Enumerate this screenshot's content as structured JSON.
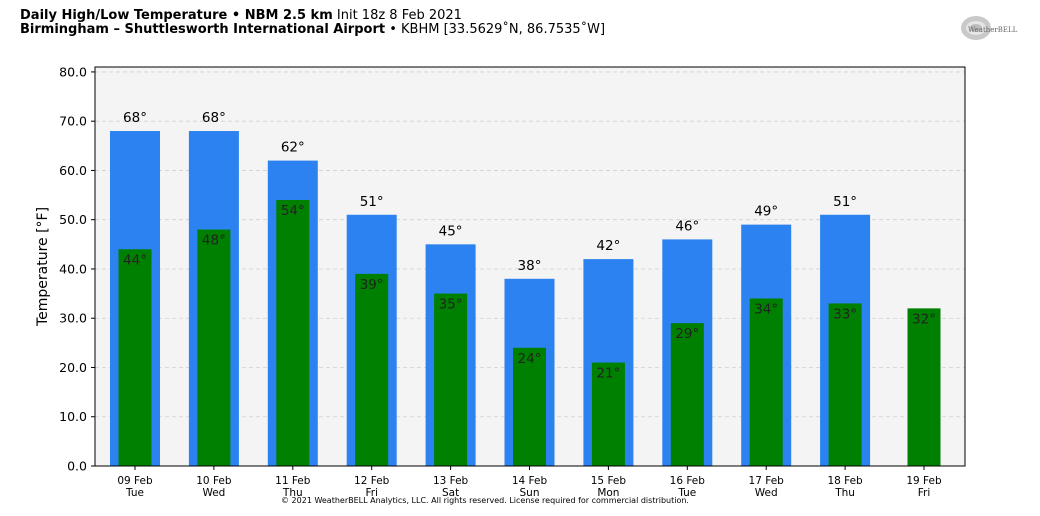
{
  "header": {
    "title_bold": "Daily High/Low Temperature • NBM 2.5 km",
    "title_normal": " Init 18z 8 Feb 2021",
    "subtitle_bold": "Birmingham – Shuttlesworth International Airport",
    "subtitle_normal": " • KBHM [33.5629˚N, 86.7535˚W]"
  },
  "logo": {
    "icon": "weatherbell-logo",
    "text": "WeatherBELL"
  },
  "copyright": "© 2021 WeatherBELL Analytics, LLC. All rights reserved. License required for commercial distribution.",
  "chart_data": {
    "type": "bar",
    "ylabel": "Temperature [°F]",
    "ylim": [
      0,
      81
    ],
    "yticks": [
      0,
      10,
      20,
      30,
      40,
      50,
      60,
      70,
      80
    ],
    "grid": true,
    "categories": [
      "09 Feb",
      "10 Feb",
      "11 Feb",
      "12 Feb",
      "13 Feb",
      "14 Feb",
      "15 Feb",
      "16 Feb",
      "17 Feb",
      "18 Feb",
      "19 Feb"
    ],
    "weekdays": [
      "Tue",
      "Wed",
      "Thu",
      "Fri",
      "Sat",
      "Sun",
      "Mon",
      "Tue",
      "Wed",
      "Thu",
      "Fri"
    ],
    "series": [
      {
        "values": [
          68,
          68,
          62,
          51,
          45,
          38,
          42,
          46,
          49,
          51,
          null
        ],
        "color": "#2b82f0"
      },
      {
        "values": [
          44,
          48,
          54,
          39,
          35,
          24,
          21,
          29,
          34,
          33,
          32
        ],
        "color": "#008000"
      }
    ],
    "label_suffix": "°"
  }
}
